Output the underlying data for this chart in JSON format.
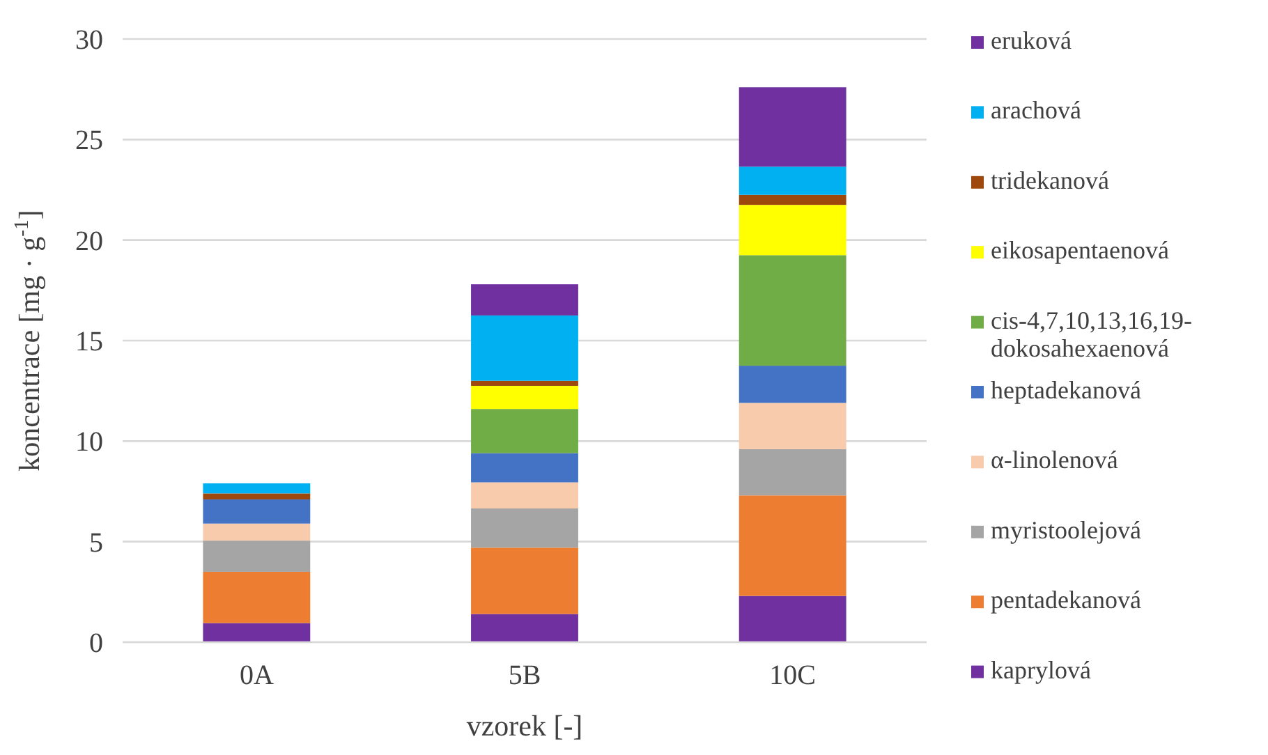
{
  "chart_data": {
    "type": "bar",
    "stacked": true,
    "xlabel": "vzorek [-]",
    "ylabel": "koncentrace [mg · g$^{-1}$]",
    "categories": [
      "0A",
      "5B",
      "10C"
    ],
    "ylim": [
      0,
      30
    ],
    "yticks": [
      0,
      5,
      10,
      15,
      20,
      25,
      30
    ],
    "grid": "y",
    "legend": "right",
    "series": [
      {
        "name": "kaprylová",
        "color": "#7030a0",
        "values": [
          0.95,
          1.4,
          2.3
        ]
      },
      {
        "name": "pentadekanová",
        "color": "#ed7d31",
        "values": [
          2.55,
          3.3,
          5.0
        ]
      },
      {
        "name": "myristoolejová",
        "color": "#a5a5a5",
        "values": [
          1.55,
          1.95,
          2.3
        ]
      },
      {
        "name": "α-linolenová",
        "color": "#f8cbad",
        "values": [
          0.85,
          1.3,
          2.3
        ]
      },
      {
        "name": "heptadekanová",
        "color": "#4472c4",
        "values": [
          1.2,
          1.45,
          1.85
        ]
      },
      {
        "name": "cis-4,7,10,13,16,19-dokosahexaenová",
        "color": "#70ad47",
        "values": [
          0,
          2.2,
          5.5
        ]
      },
      {
        "name": "eikosapentaenová",
        "color": "#ffff00",
        "values": [
          0,
          1.15,
          2.5
        ]
      },
      {
        "name": "tridekanová",
        "color": "#9e480e",
        "values": [
          0.3,
          0.25,
          0.5
        ]
      },
      {
        "name": "arachová",
        "color": "#00b0f0",
        "values": [
          0.5,
          3.25,
          1.4
        ]
      },
      {
        "name": "eruková",
        "color": "#7030a0",
        "values": [
          0,
          1.55,
          3.95
        ]
      }
    ]
  }
}
